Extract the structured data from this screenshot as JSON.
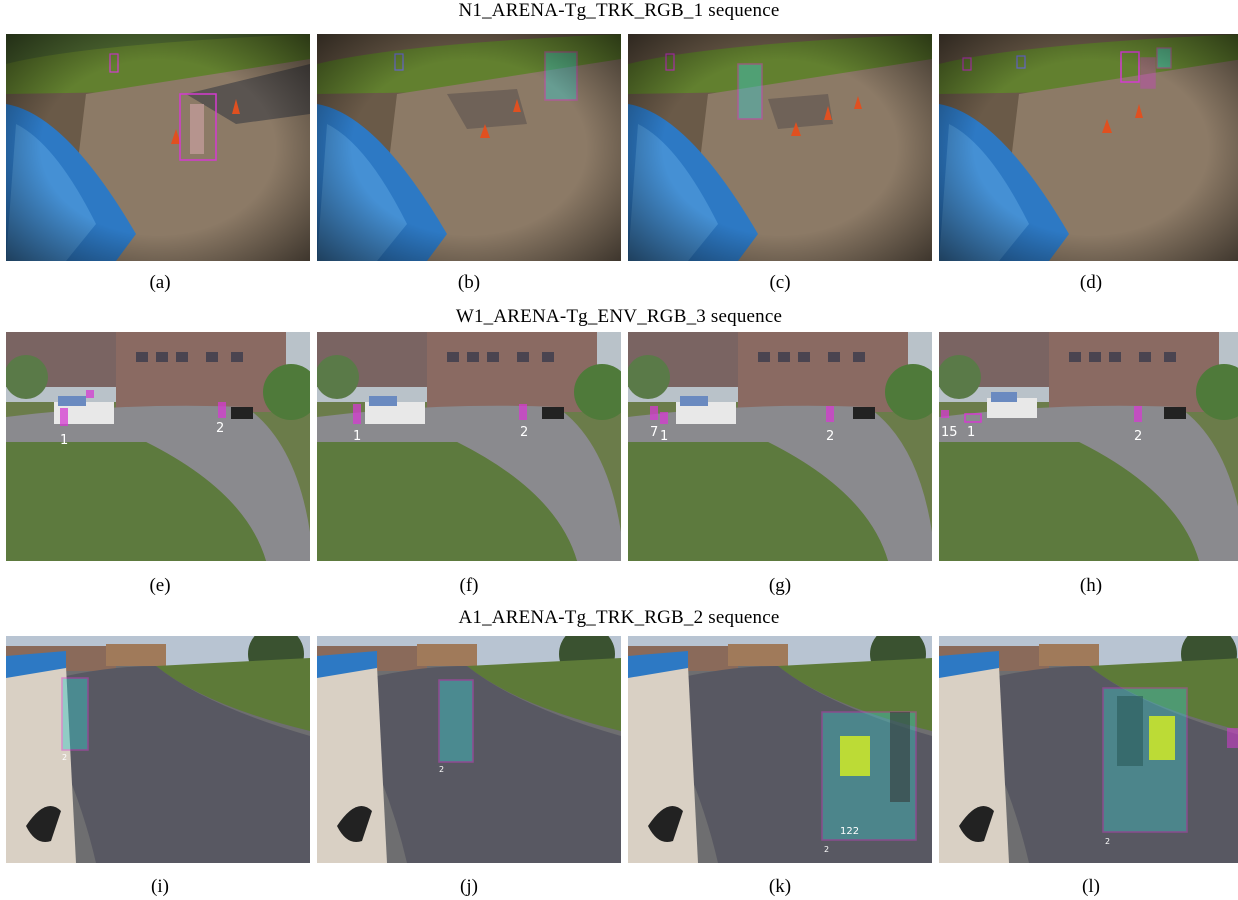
{
  "sequences": [
    {
      "title": "N1_ARENA-Tg_TRK_RGB_1 sequence",
      "captions": [
        "(a)",
        "(b)",
        "(c)",
        "(d)"
      ]
    },
    {
      "title": "W1_ARENA-Tg_ENV_RGB_3 sequence",
      "captions": [
        "(e)",
        "(f)",
        "(g)",
        "(h)"
      ]
    },
    {
      "title": "A1_ARENA-Tg_TRK_RGB_2 sequence",
      "captions": [
        "(i)",
        "(j)",
        "(k)",
        "(l)"
      ]
    }
  ],
  "track_ids": {
    "e": [
      "1",
      "2"
    ],
    "f": [
      "1",
      "2"
    ],
    "g": [
      "7",
      "1",
      "2"
    ],
    "h": [
      "15",
      "1",
      "2"
    ],
    "i": [
      "2"
    ],
    "j": [
      "2"
    ],
    "k": [
      "122",
      "2"
    ],
    "l": [
      "2"
    ]
  },
  "colors": {
    "box_magenta": "#d43bd0",
    "box_cyan_fill": "#3cc8c8",
    "tarp_blue": "#2f7fc8",
    "grass": "#5f7a3e",
    "road": "#7a7670",
    "building": "#8a6a62"
  }
}
